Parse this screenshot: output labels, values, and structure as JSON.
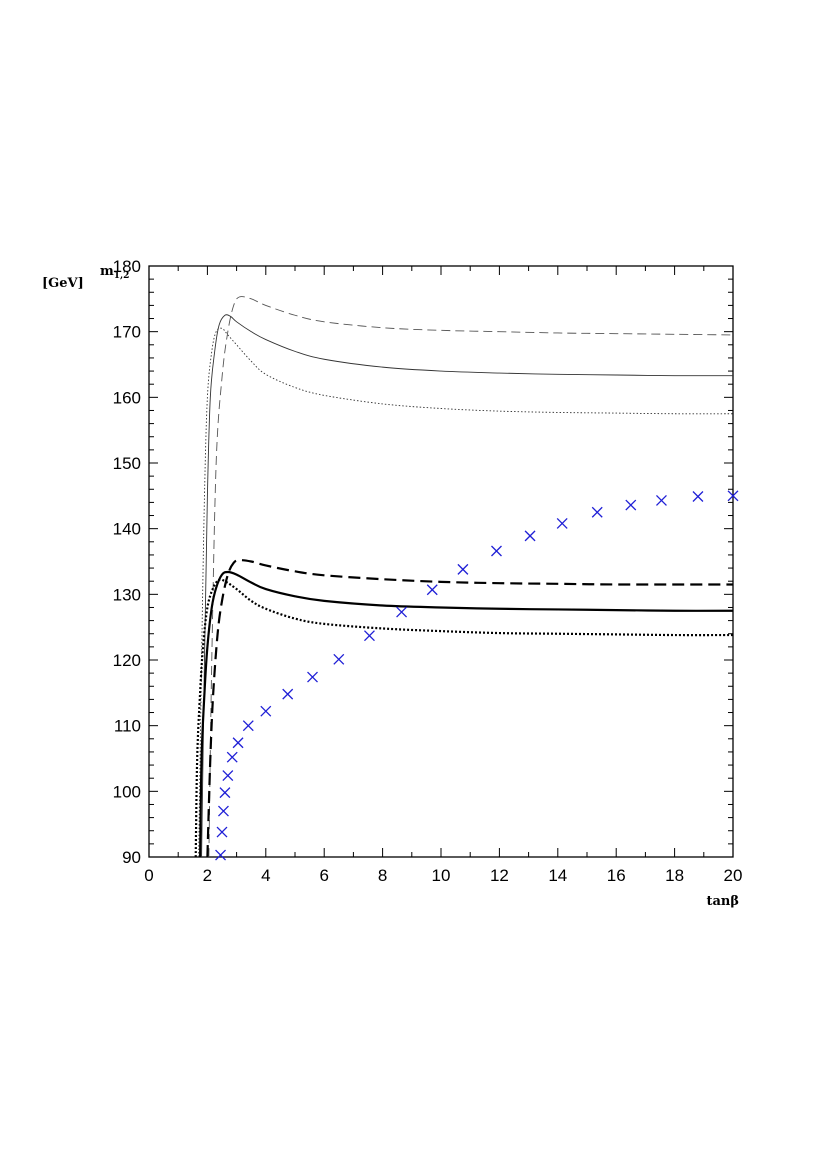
{
  "chart_data": {
    "type": "line",
    "xlabel": "tanβ",
    "ylabel": "m",
    "ylabel_subscript": "1,2",
    "ylabel_unit": "[GeV]",
    "xlim": [
      0,
      20
    ],
    "ylim": [
      90,
      180
    ],
    "xticks": [
      "0",
      "2",
      "4",
      "6",
      "8",
      "10",
      "12",
      "14",
      "16",
      "18",
      "20"
    ],
    "yticks": [
      "90",
      "100",
      "110",
      "120",
      "130",
      "140",
      "150",
      "160",
      "170",
      "180"
    ],
    "grid": false,
    "legend": "none",
    "series": [
      {
        "style": "thin-dashed",
        "color": "#555555",
        "x": [
          2.05,
          2.15,
          2.3,
          2.5,
          2.7,
          2.9,
          3.1,
          3.5,
          4,
          5,
          6,
          8,
          10,
          12,
          14,
          16,
          18,
          20
        ],
        "y": [
          90,
          120,
          150,
          163,
          170,
          174,
          175.3,
          175,
          174,
          172.5,
          171.5,
          170.6,
          170.2,
          170,
          169.8,
          169.7,
          169.6,
          169.5
        ]
      },
      {
        "style": "thin-solid",
        "color": "#333333",
        "x": [
          1.8,
          1.9,
          2.0,
          2.1,
          2.25,
          2.4,
          2.6,
          2.8,
          3,
          3.5,
          4,
          5,
          6,
          8,
          10,
          12,
          14,
          16,
          18,
          20
        ],
        "y": [
          90,
          120,
          145,
          160,
          167,
          171,
          172.5,
          172.3,
          171.5,
          170,
          168.8,
          167,
          165.8,
          164.6,
          164,
          163.7,
          163.5,
          163.4,
          163.3,
          163.3
        ]
      },
      {
        "style": "thin-dotted",
        "color": "#333333",
        "x": [
          1.7,
          1.8,
          1.9,
          2.0,
          2.15,
          2.3,
          2.5,
          2.7,
          3,
          3.5,
          4,
          5,
          6,
          8,
          10,
          12,
          14,
          16,
          18,
          20
        ],
        "y": [
          90,
          120,
          145,
          160,
          167,
          170,
          170.5,
          169.5,
          168,
          165.5,
          163.5,
          161.5,
          160.3,
          159,
          158.3,
          157.9,
          157.7,
          157.6,
          157.5,
          157.5
        ]
      },
      {
        "style": "thick-dashed",
        "color": "#000000",
        "x": [
          2.0,
          2.1,
          2.2,
          2.35,
          2.5,
          2.7,
          2.9,
          3.1,
          3.5,
          4,
          5,
          6,
          8,
          10,
          12,
          14,
          16,
          18,
          20
        ],
        "y": [
          90,
          105,
          115,
          124,
          129,
          133,
          134.8,
          135.2,
          135,
          134.4,
          133.5,
          132.9,
          132.3,
          131.9,
          131.7,
          131.6,
          131.5,
          131.5,
          131.5
        ]
      },
      {
        "style": "thick-solid",
        "color": "#000000",
        "x": [
          1.75,
          1.8,
          1.9,
          2.0,
          2.15,
          2.3,
          2.5,
          2.7,
          3,
          3.5,
          4,
          5,
          6,
          8,
          10,
          12,
          14,
          16,
          18,
          20
        ],
        "y": [
          90,
          105,
          115,
          122,
          128,
          131,
          133,
          133.4,
          133,
          131.8,
          130.8,
          129.7,
          129,
          128.3,
          128,
          127.8,
          127.7,
          127.6,
          127.5,
          127.5
        ]
      },
      {
        "style": "thick-dotted",
        "color": "#000000",
        "x": [
          1.6,
          1.65,
          1.75,
          1.85,
          2.0,
          2.2,
          2.4,
          2.6,
          3,
          3.5,
          4,
          5,
          6,
          8,
          10,
          12,
          14,
          16,
          18,
          20
        ],
        "y": [
          90,
          105,
          115,
          122,
          128,
          131,
          132.2,
          132,
          130.8,
          129,
          127.8,
          126.3,
          125.5,
          124.8,
          124.4,
          124.1,
          124,
          123.9,
          123.8,
          123.8
        ]
      },
      {
        "style": "markers-x",
        "color": "#1f1fd6",
        "x": [
          2.45,
          2.5,
          2.55,
          2.6,
          2.7,
          2.85,
          3.05,
          3.4,
          4.0,
          4.75,
          5.6,
          6.5,
          7.55,
          8.65,
          9.7,
          10.75,
          11.9,
          13.05,
          14.15,
          15.35,
          16.5,
          17.55,
          18.8,
          20.0
        ],
        "y": [
          90.3,
          93.8,
          97,
          99.8,
          102.4,
          105.2,
          107.4,
          110,
          112.2,
          114.8,
          117.4,
          120.1,
          123.7,
          127.3,
          130.7,
          133.8,
          136.6,
          138.9,
          140.8,
          142.5,
          143.6,
          144.3,
          144.9,
          145
        ]
      }
    ]
  }
}
